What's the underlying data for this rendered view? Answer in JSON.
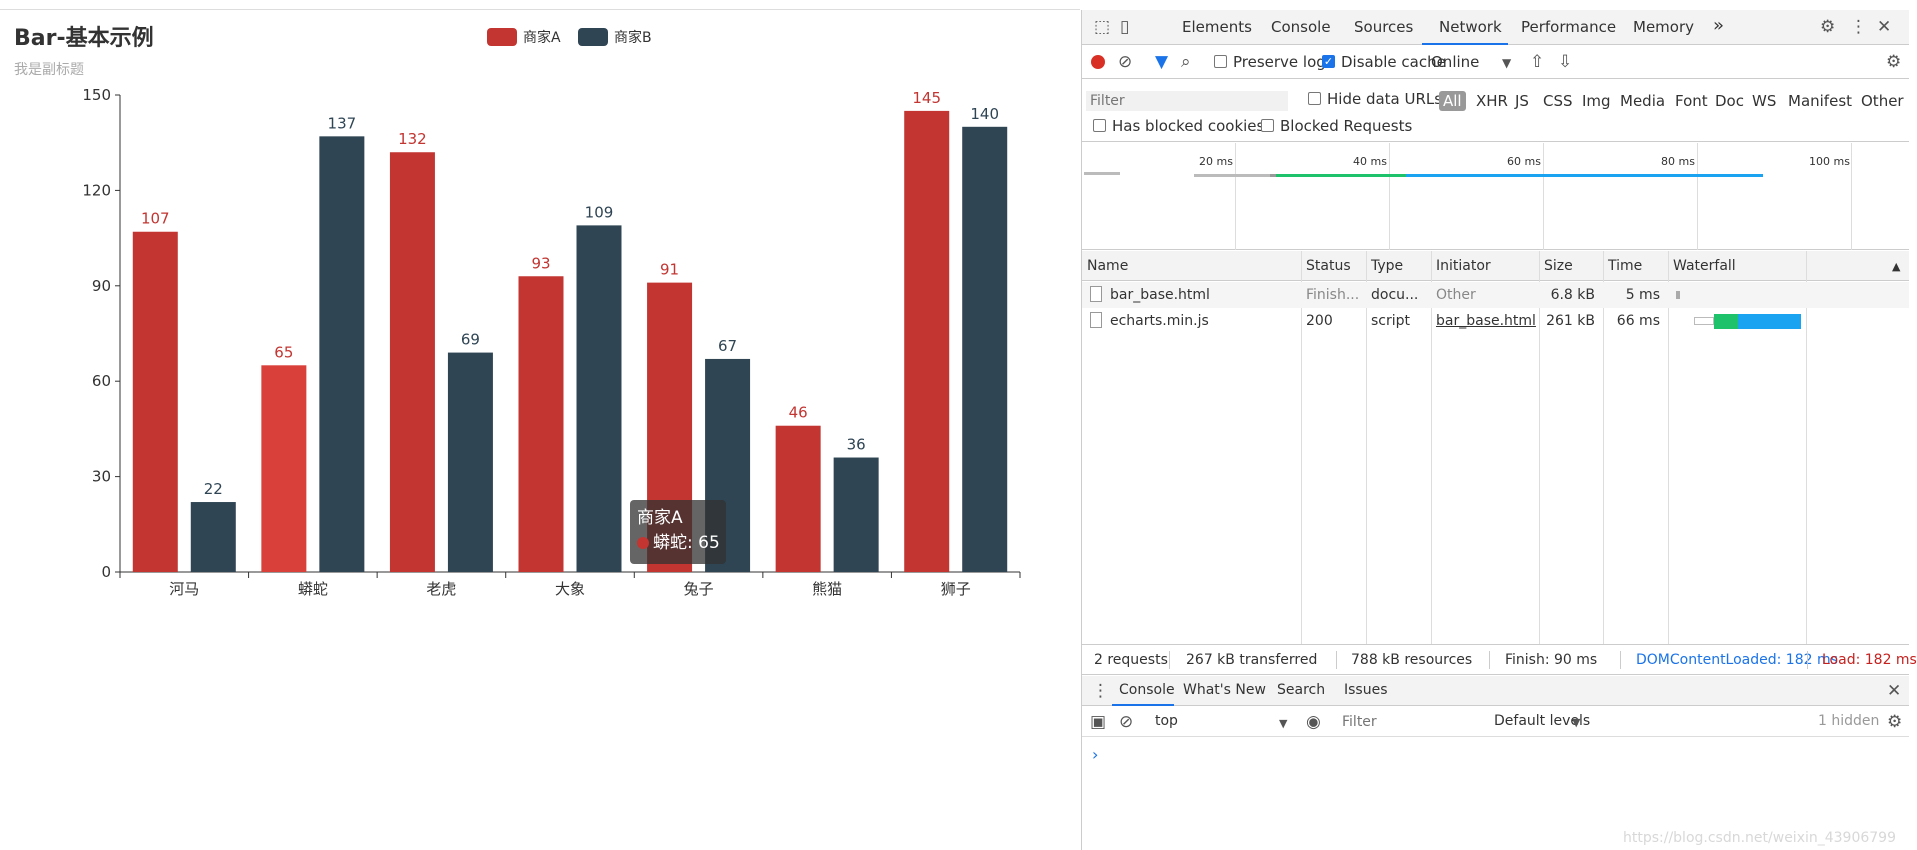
{
  "chart": {
    "title": "Bar-基本示例",
    "subtitle": "我是副标题",
    "legend": [
      {
        "name": "商家A",
        "color": "#c23531"
      },
      {
        "name": "商家B",
        "color": "#2f4554"
      }
    ],
    "tooltip": {
      "series": "商家A",
      "line": "蟒蛇: 65",
      "color": "#c23531"
    }
  },
  "chart_data": {
    "type": "bar",
    "title": "Bar-基本示例",
    "subtitle": "我是副标题",
    "categories": [
      "河马",
      "蟒蛇",
      "老虎",
      "大象",
      "兔子",
      "熊猫",
      "狮子"
    ],
    "series": [
      {
        "name": "商家A",
        "color": "#c23531",
        "values": [
          107,
          65,
          132,
          93,
          91,
          46,
          145
        ]
      },
      {
        "name": "商家B",
        "color": "#2f4554",
        "values": [
          22,
          137,
          69,
          109,
          67,
          36,
          140
        ]
      }
    ],
    "ylim": [
      0,
      150
    ],
    "yticks": [
      0,
      30,
      60,
      90,
      120,
      150
    ],
    "grid": false,
    "legend_position": "top-center",
    "highlighted": {
      "series": "商家A",
      "category": "蟒蛇",
      "color": "#d9403a"
    }
  },
  "devtools": {
    "tabs": [
      "Elements",
      "Console",
      "Sources",
      "Network",
      "Performance",
      "Memory"
    ],
    "active_tab": "Network",
    "more": "»",
    "toolbar": {
      "preserve_log": "Preserve log",
      "disable_cache": "Disable cache",
      "throttle": "Online"
    },
    "filter": {
      "placeholder": "Filter",
      "hide_data_urls": "Hide data URLs",
      "types": [
        "All",
        "XHR",
        "JS",
        "CSS",
        "Img",
        "Media",
        "Font",
        "Doc",
        "WS",
        "Manifest",
        "Other"
      ],
      "has_blocked_cookies": "Has blocked cookies",
      "blocked_requests": "Blocked Requests"
    },
    "overview": {
      "ticks": [
        "20 ms",
        "40 ms",
        "60 ms",
        "80 ms",
        "100 ms"
      ]
    },
    "table": {
      "columns": [
        "Name",
        "Status",
        "Type",
        "Initiator",
        "Size",
        "Time",
        "Waterfall"
      ],
      "rows": [
        {
          "name": "bar_base.html",
          "status": "Finish...",
          "type": "docu...",
          "initiator": "Other",
          "size": "6.8 kB",
          "time": "5 ms"
        },
        {
          "name": "echarts.min.js",
          "status": "200",
          "type": "script",
          "initiator": "bar_base.html",
          "size": "261 kB",
          "time": "66 ms"
        }
      ]
    },
    "status": {
      "requests": "2 requests",
      "transferred": "267 kB transferred",
      "resources": "788 kB resources",
      "finish": "Finish: 90 ms",
      "dcl": "DOMContentLoaded: 182 ms",
      "load": "Load: 182 ms"
    },
    "drawer": {
      "tabs": [
        "Console",
        "What's New",
        "Search",
        "Issues"
      ],
      "context": "top",
      "filter_placeholder": "Filter",
      "levels": "Default levels",
      "hidden": "1 hidden"
    }
  },
  "watermark": "https://blog.csdn.net/weixin_43906799"
}
